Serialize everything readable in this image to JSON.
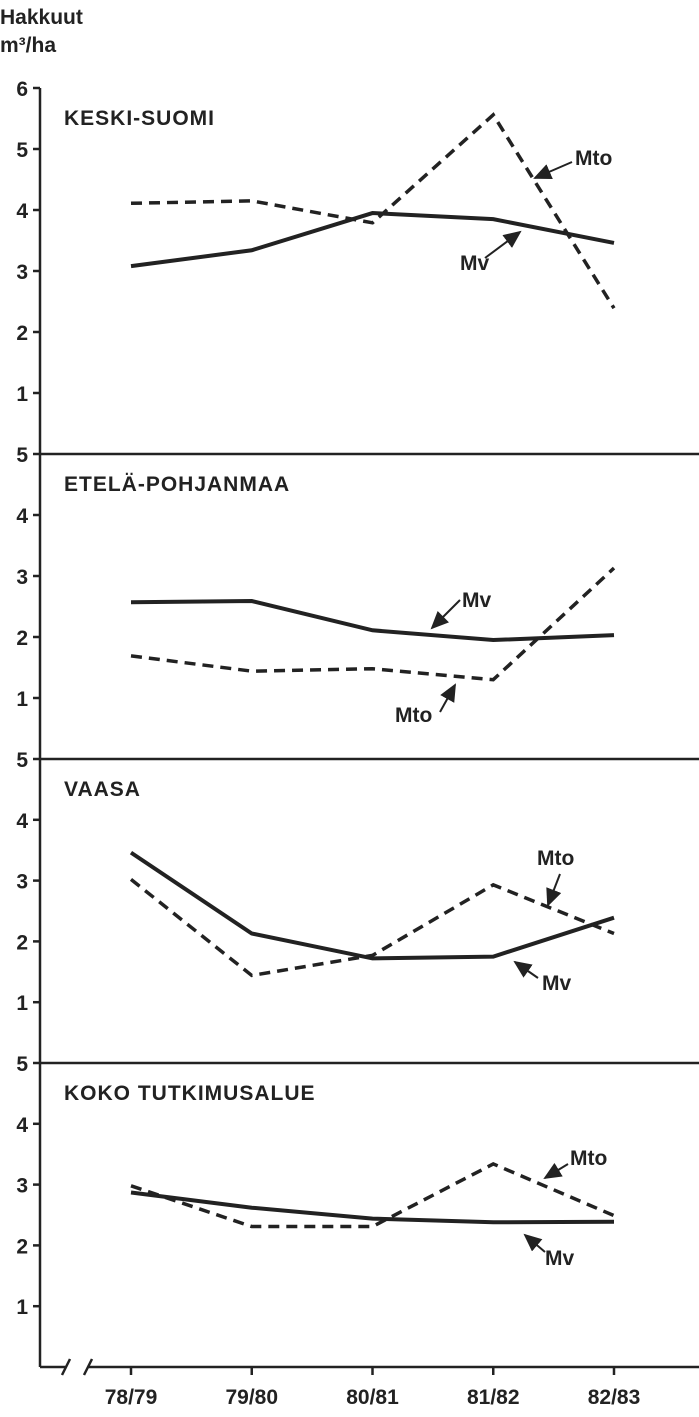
{
  "chart_data": [
    {
      "type": "line",
      "title": "KESKI-SUOMI",
      "ylabel": [
        "Hakkuut",
        "m³/ha"
      ],
      "ylim": [
        0,
        6
      ],
      "yticks": [
        1,
        2,
        3,
        4,
        5,
        6
      ],
      "series": [
        {
          "name": "Mv",
          "color": "#222222",
          "style": "solid",
          "values": [
            3.08,
            3.34,
            3.95,
            3.85,
            3.46
          ]
        },
        {
          "name": "Mto",
          "color": "#222222",
          "style": "dashed",
          "values": [
            4.11,
            4.15,
            3.79,
            5.56,
            2.39
          ]
        }
      ]
    },
    {
      "type": "line",
      "title": "ETELÄ-POHJANMAA",
      "ylim": [
        0,
        5
      ],
      "yticks": [
        1,
        2,
        3,
        4,
        5
      ],
      "series": [
        {
          "name": "Mv",
          "color": "#222222",
          "style": "solid",
          "values": [
            2.57,
            2.59,
            2.11,
            1.95,
            2.03
          ]
        },
        {
          "name": "Mto",
          "color": "#222222",
          "style": "dashed",
          "values": [
            1.69,
            1.44,
            1.48,
            1.3,
            3.13
          ]
        }
      ]
    },
    {
      "type": "line",
      "title": "VAASA",
      "ylim": [
        0,
        5
      ],
      "yticks": [
        1,
        2,
        3,
        4,
        5
      ],
      "series": [
        {
          "name": "Mv",
          "color": "#222222",
          "style": "solid",
          "values": [
            3.46,
            2.13,
            1.72,
            1.75,
            2.39
          ]
        },
        {
          "name": "Mto",
          "color": "#222222",
          "style": "dashed",
          "values": [
            3.02,
            1.44,
            1.77,
            2.93,
            2.13
          ]
        }
      ]
    },
    {
      "type": "line",
      "title": "KOKO TUTKIMUSALUE",
      "ylim": [
        0,
        5
      ],
      "yticks": [
        1,
        2,
        3,
        4,
        5
      ],
      "categories": [
        "78/79",
        "79/80",
        "80/81",
        "81/82",
        "82/83"
      ],
      "series": [
        {
          "name": "Mv",
          "color": "#222222",
          "style": "solid",
          "values": [
            2.87,
            2.62,
            2.44,
            2.38,
            2.39
          ]
        },
        {
          "name": "Mto",
          "color": "#222222",
          "style": "dashed",
          "values": [
            2.98,
            2.31,
            2.31,
            3.34,
            2.49
          ]
        }
      ]
    }
  ]
}
